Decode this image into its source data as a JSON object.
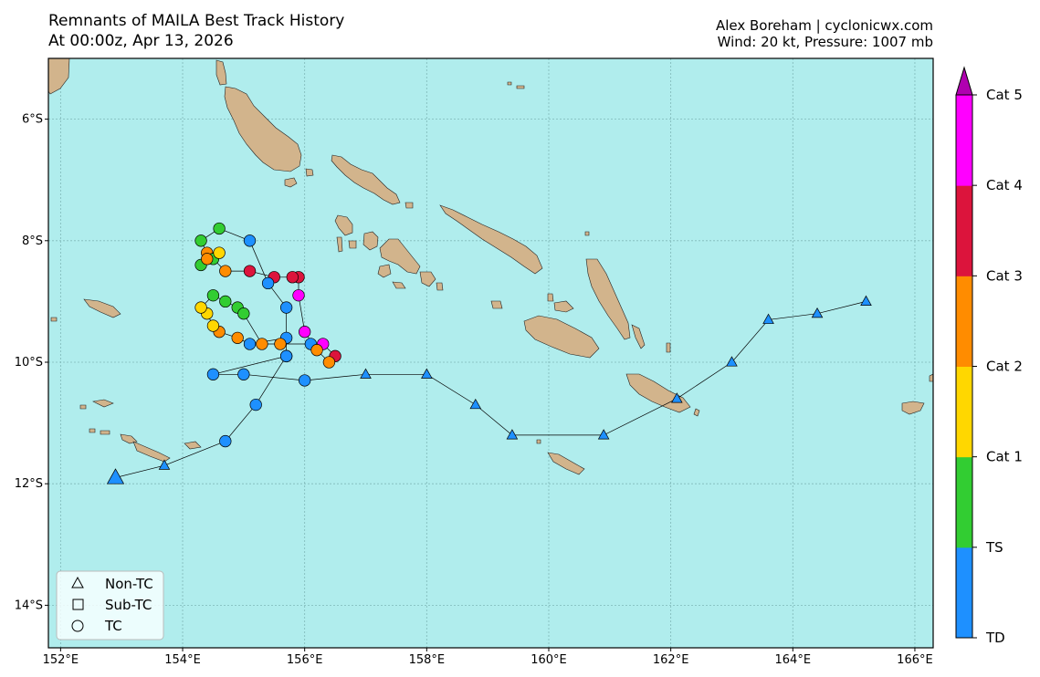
{
  "header": {
    "title_line1": "Remnants of MAILA Best Track History",
    "title_line2": "At 00:00z, Apr 13, 2026",
    "credit": "Alex Boreham | cyclonicwx.com",
    "current": "Wind: 20 kt, Pressure: 1007 mb"
  },
  "map": {
    "lon_range": [
      151.8,
      166.3
    ],
    "lat_range": [
      -14.7,
      -5.0
    ],
    "ocean_color": "#b0eded",
    "land_color": "#d2b48c",
    "lon_ticks": [
      "152°E",
      "154°E",
      "156°E",
      "158°E",
      "160°E",
      "162°E",
      "164°E",
      "166°E"
    ],
    "lat_ticks": [
      "6°S",
      "8°S",
      "10°S",
      "12°S",
      "14°S"
    ]
  },
  "colorbar": {
    "labels": [
      "TD",
      "TS",
      "Cat 1",
      "Cat 2",
      "Cat 3",
      "Cat 4",
      "Cat 5"
    ],
    "colors": [
      "#1e90ff",
      "#32cd32",
      "#ffd700",
      "#ff8c00",
      "#dc143c",
      "#ff00ff",
      "#b000b0"
    ]
  },
  "legend": {
    "items": [
      {
        "label": "Non-TC",
        "symbol": "triangle"
      },
      {
        "label": "Sub-TC",
        "symbol": "square"
      },
      {
        "label": "TC",
        "symbol": "circle"
      }
    ]
  },
  "track": [
    {
      "lon": 165.2,
      "lat": -9.0,
      "type": "non-tc",
      "cat": "TD"
    },
    {
      "lon": 164.4,
      "lat": -9.2,
      "type": "non-tc",
      "cat": "TD"
    },
    {
      "lon": 163.6,
      "lat": -9.3,
      "type": "non-tc",
      "cat": "TD"
    },
    {
      "lon": 163.0,
      "lat": -10.0,
      "type": "non-tc",
      "cat": "TD"
    },
    {
      "lon": 162.1,
      "lat": -10.6,
      "type": "non-tc",
      "cat": "TD"
    },
    {
      "lon": 160.9,
      "lat": -11.2,
      "type": "non-tc",
      "cat": "TD"
    },
    {
      "lon": 159.4,
      "lat": -11.2,
      "type": "non-tc",
      "cat": "TD"
    },
    {
      "lon": 158.8,
      "lat": -10.7,
      "type": "non-tc",
      "cat": "TD"
    },
    {
      "lon": 158.0,
      "lat": -10.2,
      "type": "non-tc",
      "cat": "TD"
    },
    {
      "lon": 157.0,
      "lat": -10.2,
      "type": "non-tc",
      "cat": "TD"
    },
    {
      "lon": 156.0,
      "lat": -10.3,
      "type": "tc",
      "cat": "TD"
    },
    {
      "lon": 155.0,
      "lat": -10.2,
      "type": "tc",
      "cat": "TD"
    },
    {
      "lon": 154.5,
      "lat": -10.2,
      "type": "tc",
      "cat": "TD"
    },
    {
      "lon": 155.7,
      "lat": -9.9,
      "type": "tc",
      "cat": "TD"
    },
    {
      "lon": 155.7,
      "lat": -9.6,
      "type": "tc",
      "cat": "TD"
    },
    {
      "lon": 155.1,
      "lat": -9.7,
      "type": "tc",
      "cat": "TD"
    },
    {
      "lon": 154.9,
      "lat": -9.6,
      "type": "tc",
      "cat": "Cat 2"
    },
    {
      "lon": 154.6,
      "lat": -9.5,
      "type": "tc",
      "cat": "Cat 2"
    },
    {
      "lon": 154.5,
      "lat": -9.4,
      "type": "tc",
      "cat": "Cat 1"
    },
    {
      "lon": 154.4,
      "lat": -9.2,
      "type": "tc",
      "cat": "Cat 1"
    },
    {
      "lon": 154.3,
      "lat": -9.1,
      "type": "tc",
      "cat": "Cat 1"
    },
    {
      "lon": 154.5,
      "lat": -8.9,
      "type": "tc",
      "cat": "TS"
    },
    {
      "lon": 154.7,
      "lat": -9.0,
      "type": "tc",
      "cat": "TS"
    },
    {
      "lon": 154.9,
      "lat": -9.1,
      "type": "tc",
      "cat": "TS"
    },
    {
      "lon": 155.0,
      "lat": -9.2,
      "type": "tc",
      "cat": "TS"
    },
    {
      "lon": 155.3,
      "lat": -9.7,
      "type": "tc",
      "cat": "Cat 2"
    },
    {
      "lon": 155.6,
      "lat": -9.7,
      "type": "tc",
      "cat": "Cat 2"
    },
    {
      "lon": 156.1,
      "lat": -9.7,
      "type": "tc",
      "cat": "TD"
    },
    {
      "lon": 156.3,
      "lat": -9.7,
      "type": "tc",
      "cat": "Cat 4"
    },
    {
      "lon": 156.5,
      "lat": -9.9,
      "type": "tc",
      "cat": "Cat 3"
    },
    {
      "lon": 156.4,
      "lat": -10.0,
      "type": "tc",
      "cat": "Cat 2"
    },
    {
      "lon": 156.2,
      "lat": -9.8,
      "type": "tc",
      "cat": "Cat 2"
    },
    {
      "lon": 156.0,
      "lat": -9.5,
      "type": "tc",
      "cat": "Cat 4"
    },
    {
      "lon": 155.9,
      "lat": -8.9,
      "type": "tc",
      "cat": "Cat 4"
    },
    {
      "lon": 155.9,
      "lat": -8.6,
      "type": "tc",
      "cat": "Cat 3"
    },
    {
      "lon": 155.8,
      "lat": -8.6,
      "type": "tc",
      "cat": "Cat 3"
    },
    {
      "lon": 155.5,
      "lat": -8.6,
      "type": "tc",
      "cat": "Cat 3"
    },
    {
      "lon": 155.1,
      "lat": -8.5,
      "type": "tc",
      "cat": "Cat 3"
    },
    {
      "lon": 154.7,
      "lat": -8.5,
      "type": "tc",
      "cat": "Cat 2"
    },
    {
      "lon": 154.4,
      "lat": -8.2,
      "type": "tc",
      "cat": "Cat 2"
    },
    {
      "lon": 154.3,
      "lat": -8.0,
      "type": "tc",
      "cat": "TS"
    },
    {
      "lon": 154.6,
      "lat": -7.8,
      "type": "tc",
      "cat": "TS"
    },
    {
      "lon": 155.1,
      "lat": -8.0,
      "type": "tc",
      "cat": "TD"
    },
    {
      "lon": 155.4,
      "lat": -8.7,
      "type": "tc",
      "cat": "TD"
    },
    {
      "lon": 155.7,
      "lat": -9.1,
      "type": "tc",
      "cat": "TD"
    },
    {
      "lon": 155.7,
      "lat": -9.9,
      "type": "tc",
      "cat": "TD"
    },
    {
      "lon": 155.2,
      "lat": -10.7,
      "type": "tc",
      "cat": "TD"
    },
    {
      "lon": 154.7,
      "lat": -11.3,
      "type": "tc",
      "cat": "TD"
    },
    {
      "lon": 153.7,
      "lat": -11.7,
      "type": "non-tc",
      "cat": "TD"
    },
    {
      "lon": 152.9,
      "lat": -11.9,
      "type": "non-tc",
      "cat": "TD",
      "current": true
    }
  ],
  "extra_points": [
    {
      "lon": 154.3,
      "lat": -8.4,
      "type": "tc",
      "cat": "TS"
    },
    {
      "lon": 154.5,
      "lat": -8.3,
      "type": "tc",
      "cat": "TS"
    },
    {
      "lon": 154.6,
      "lat": -8.2,
      "type": "tc",
      "cat": "Cat 1"
    },
    {
      "lon": 154.4,
      "lat": -8.3,
      "type": "tc",
      "cat": "Cat 2"
    }
  ]
}
